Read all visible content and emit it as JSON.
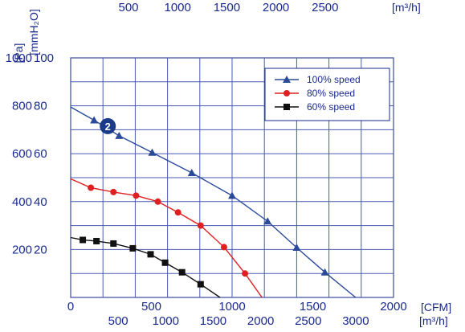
{
  "chart_data": {
    "type": "line",
    "title": "",
    "xlim": [
      0,
      2000
    ],
    "ylim_pa": [
      0,
      1000
    ],
    "grid": true,
    "legend_position": "top-right",
    "axes": {
      "bottom_primary": {
        "unit": "[CFM]",
        "ticks": [
          "0",
          "500",
          "1000",
          "1500",
          "2000"
        ]
      },
      "bottom_secondary": {
        "unit": "[m³/h]",
        "ticks": [
          "500",
          "1000",
          "1500",
          "2000",
          "2500",
          "3000"
        ],
        "values": [
          500,
          1000,
          1500,
          2000,
          2500,
          3000
        ]
      },
      "top": {
        "unit": "[m³/h]",
        "ticks": [
          "500",
          "1000",
          "1500",
          "2000",
          "2500"
        ],
        "values": [
          500,
          1000,
          1500,
          2000,
          2500
        ]
      },
      "left_pa": {
        "unit": "[Pa]",
        "ticks": [
          "200",
          "400",
          "600",
          "800",
          "1000"
        ]
      },
      "left_mmh2o": {
        "unit": "[mmH₂O]",
        "ticks": [
          "20",
          "40",
          "60",
          "80",
          "100"
        ]
      }
    },
    "series": [
      {
        "name": "100% speed",
        "color": "#2a4a9a",
        "marker": "triangle",
        "points": [
          [
            0,
            795
          ],
          [
            145,
            740
          ],
          [
            300,
            675
          ],
          [
            505,
            605
          ],
          [
            750,
            520
          ],
          [
            1000,
            425
          ],
          [
            1220,
            318
          ],
          [
            1400,
            208
          ],
          [
            1575,
            105
          ],
          [
            1765,
            0
          ]
        ]
      },
      {
        "name": "80% speed",
        "color": "#e02020",
        "marker": "circle",
        "points": [
          [
            0,
            495
          ],
          [
            125,
            458
          ],
          [
            265,
            440
          ],
          [
            405,
            425
          ],
          [
            540,
            400
          ],
          [
            665,
            355
          ],
          [
            805,
            300
          ],
          [
            950,
            210
          ],
          [
            1080,
            100
          ],
          [
            1185,
            0
          ]
        ]
      },
      {
        "name": "60% speed",
        "color": "#111111",
        "marker": "square",
        "points": [
          [
            0,
            250
          ],
          [
            75,
            240
          ],
          [
            160,
            235
          ],
          [
            265,
            225
          ],
          [
            385,
            205
          ],
          [
            495,
            180
          ],
          [
            585,
            145
          ],
          [
            690,
            105
          ],
          [
            805,
            55
          ],
          [
            925,
            0
          ]
        ]
      }
    ],
    "annotations": [
      {
        "label": "2",
        "x": 230,
        "y": 715,
        "color": "#1a3a8a"
      }
    ]
  }
}
